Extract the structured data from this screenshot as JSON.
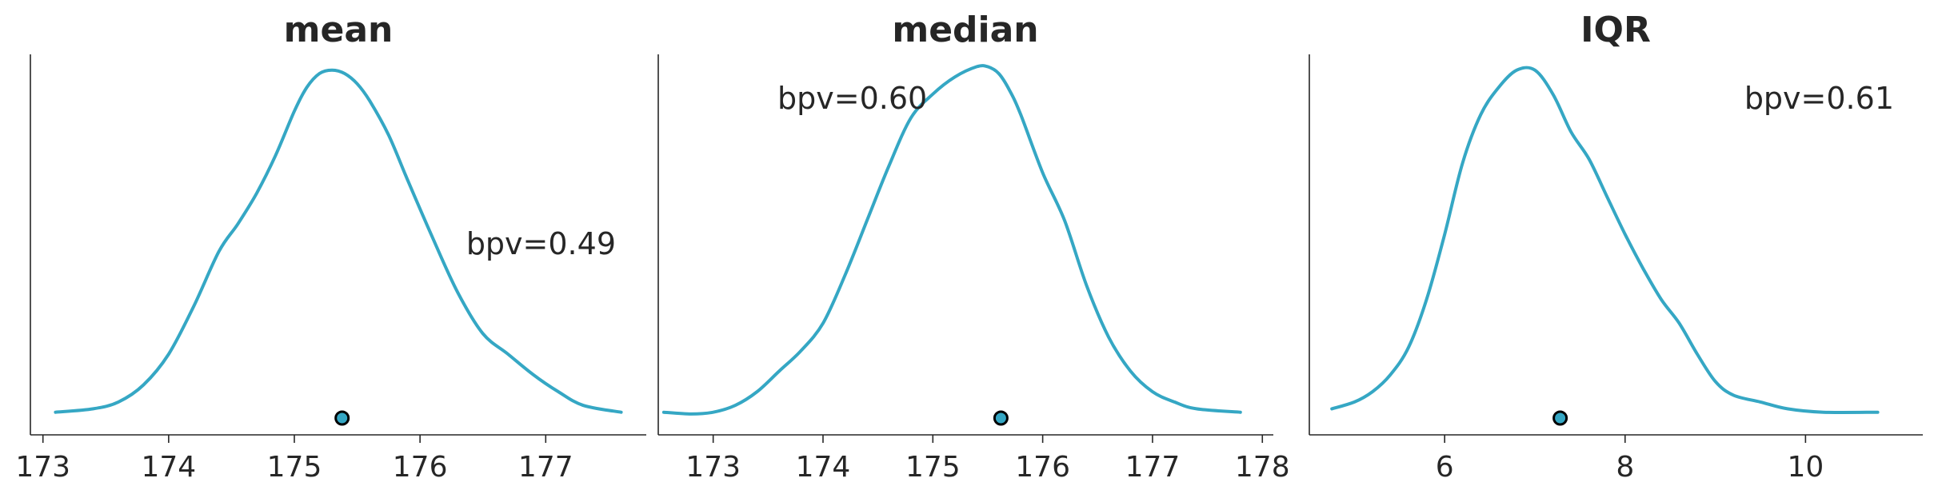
{
  "colors": {
    "kde": "#35a7c4",
    "point": "#35a7c4",
    "axis": "#262626"
  },
  "chart_data": [
    {
      "type": "line",
      "title": "mean",
      "xlabel": "",
      "ylabel": "",
      "xlim": [
        172.9,
        177.8
      ],
      "xticks": [
        173,
        174,
        175,
        176,
        177
      ],
      "tick_labels": [
        "173",
        "174",
        "175",
        "176",
        "177"
      ],
      "bpv_label": "bpv=0.49",
      "bpv_label_position": "right-middle",
      "observed_statistic": 175.38,
      "series": [
        {
          "x": [
            173.1,
            173.4,
            173.6,
            173.8,
            174.0,
            174.2,
            174.4,
            174.55,
            174.7,
            174.85,
            175.0,
            175.1,
            175.2,
            175.3,
            175.4,
            175.5,
            175.6,
            175.75,
            175.9,
            176.1,
            176.3,
            176.5,
            176.7,
            176.9,
            177.1,
            177.3,
            177.6
          ],
          "y": [
            0.01,
            0.02,
            0.04,
            0.09,
            0.18,
            0.32,
            0.48,
            0.56,
            0.65,
            0.76,
            0.89,
            0.96,
            1.0,
            1.01,
            1.0,
            0.97,
            0.92,
            0.82,
            0.69,
            0.52,
            0.36,
            0.24,
            0.18,
            0.12,
            0.07,
            0.03,
            0.01
          ]
        }
      ]
    },
    {
      "type": "line",
      "title": "median",
      "xlabel": "",
      "ylabel": "",
      "xlim": [
        172.5,
        178.1
      ],
      "xticks": [
        173,
        174,
        175,
        176,
        177,
        178
      ],
      "tick_labels": [
        "173",
        "174",
        "175",
        "176",
        "177",
        "178"
      ],
      "bpv_label": "bpv=0.60",
      "bpv_label_position": "top-left",
      "observed_statistic": 175.62,
      "series": [
        {
          "x": [
            172.55,
            172.8,
            173.0,
            173.2,
            173.4,
            173.6,
            173.8,
            174.0,
            174.2,
            174.4,
            174.6,
            174.8,
            175.0,
            175.2,
            175.4,
            175.5,
            175.6,
            175.7,
            175.8,
            176.0,
            176.2,
            176.4,
            176.6,
            176.8,
            177.0,
            177.2,
            177.4,
            177.8
          ],
          "y": [
            0.01,
            0.005,
            0.01,
            0.03,
            0.07,
            0.13,
            0.19,
            0.27,
            0.41,
            0.57,
            0.73,
            0.87,
            0.94,
            0.99,
            1.02,
            1.02,
            1.0,
            0.95,
            0.88,
            0.71,
            0.57,
            0.38,
            0.23,
            0.13,
            0.07,
            0.04,
            0.02,
            0.01
          ]
        }
      ]
    },
    {
      "type": "line",
      "title": "IQR",
      "xlabel": "",
      "ylabel": "",
      "xlim": [
        4.5,
        11.3
      ],
      "xticks": [
        6,
        8,
        10
      ],
      "tick_labels": [
        "6",
        "8",
        "10"
      ],
      "bpv_label": "bpv=0.61",
      "bpv_label_position": "top-right",
      "observed_statistic": 7.28,
      "series": [
        {
          "x": [
            4.75,
            5.0,
            5.2,
            5.4,
            5.6,
            5.8,
            6.0,
            6.2,
            6.4,
            6.6,
            6.8,
            7.0,
            7.2,
            7.4,
            7.6,
            7.8,
            8.0,
            8.2,
            8.4,
            8.6,
            8.8,
            9.0,
            9.2,
            9.5,
            9.8,
            10.2,
            10.8
          ],
          "y": [
            0.02,
            0.04,
            0.07,
            0.12,
            0.2,
            0.34,
            0.53,
            0.74,
            0.88,
            0.96,
            1.01,
            1.01,
            0.94,
            0.83,
            0.75,
            0.64,
            0.53,
            0.43,
            0.34,
            0.27,
            0.18,
            0.1,
            0.06,
            0.04,
            0.02,
            0.01,
            0.01
          ]
        }
      ]
    }
  ]
}
